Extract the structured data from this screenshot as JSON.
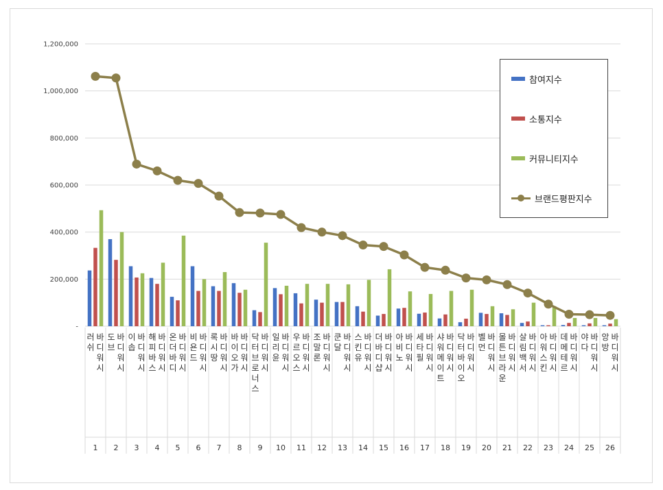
{
  "chart_data": {
    "type": "bar+line",
    "categories": [
      {
        "num": "1",
        "name": "러쉬 바디워시"
      },
      {
        "num": "2",
        "name": "도브 바디워시"
      },
      {
        "num": "3",
        "name": "이솝 바디워시"
      },
      {
        "num": "4",
        "name": "해피바스 바디워시"
      },
      {
        "num": "5",
        "name": "온더바디 바디워시"
      },
      {
        "num": "6",
        "name": "비욘드 바디워시"
      },
      {
        "num": "7",
        "name": "록시땅 바디워시"
      },
      {
        "num": "8",
        "name": "바이오가 바디워시"
      },
      {
        "num": "9",
        "name": "닥터브로너스 바디워시"
      },
      {
        "num": "10",
        "name": "일리윤 바디워시"
      },
      {
        "num": "11",
        "name": "우르오스 바디워시"
      },
      {
        "num": "12",
        "name": "조말론 바디워시"
      },
      {
        "num": "13",
        "name": "쿤달 바디워시"
      },
      {
        "num": "14",
        "name": "스킨유 바디워시"
      },
      {
        "num": "15",
        "name": "더바디샵 바디워시"
      },
      {
        "num": "16",
        "name": "아비노 바디워시"
      },
      {
        "num": "17",
        "name": "세타필 바디워시"
      },
      {
        "num": "18",
        "name": "샤워메이트 바디워시"
      },
      {
        "num": "19",
        "name": "닥터바이오 바디워시"
      },
      {
        "num": "20",
        "name": "벨먼 바디워시"
      },
      {
        "num": "21",
        "name": "몰튼브라운 바디워시"
      },
      {
        "num": "22",
        "name": "살림백서 바디워시"
      },
      {
        "num": "23",
        "name": "아워스킨 바디워시"
      },
      {
        "num": "24",
        "name": "데메테르 바디워시"
      },
      {
        "num": "25",
        "name": "야다 바디워시"
      },
      {
        "num": "26",
        "name": "앙방 바디워시"
      }
    ],
    "series": [
      {
        "name": "참여지수",
        "kind": "bar",
        "color": "#4472c4",
        "values": [
          237000,
          370000,
          255000,
          205000,
          125000,
          255000,
          170000,
          183000,
          68000,
          162000,
          140000,
          113000,
          103000,
          85000,
          45000,
          75000,
          53000,
          33000,
          17000,
          57000,
          55000,
          14000,
          4000,
          5000,
          4000,
          4000
        ]
      },
      {
        "name": "소통지수",
        "kind": "bar",
        "color": "#c0504d",
        "values": [
          333000,
          282000,
          207000,
          180000,
          110000,
          150000,
          150000,
          142000,
          60000,
          136000,
          97000,
          100000,
          103000,
          62000,
          52000,
          78000,
          58000,
          50000,
          32000,
          52000,
          48000,
          20000,
          4000,
          14000,
          12000,
          11000
        ]
      },
      {
        "name": "커뮤니티지수",
        "kind": "bar",
        "color": "#9bbb59",
        "values": [
          493000,
          400000,
          225000,
          270000,
          385000,
          200000,
          230000,
          155000,
          355000,
          172000,
          180000,
          180000,
          178000,
          197000,
          242000,
          148000,
          137000,
          150000,
          155000,
          85000,
          72000,
          100000,
          85000,
          35000,
          35000,
          30000
        ]
      },
      {
        "name": "브랜드평판지수",
        "kind": "line",
        "color": "#8c7f4a",
        "values": [
          1062000,
          1055000,
          689000,
          660000,
          620000,
          607000,
          553000,
          483000,
          481000,
          475000,
          419000,
          400000,
          385000,
          345000,
          339000,
          303000,
          250000,
          238000,
          205000,
          197000,
          177000,
          141000,
          94000,
          51000,
          49000,
          46000
        ]
      }
    ],
    "ylim": [
      0,
      1200000
    ],
    "yticks": [
      {
        "v": 0,
        "label": "-"
      },
      {
        "v": 200000,
        "label": "200,000"
      },
      {
        "v": 400000,
        "label": "400,000"
      },
      {
        "v": 600000,
        "label": "600,000"
      },
      {
        "v": 800000,
        "label": "800,000"
      },
      {
        "v": 1000000,
        "label": "1,000,000"
      },
      {
        "v": 1200000,
        "label": "1,200,000"
      }
    ],
    "grid": true,
    "legend_position": "right"
  }
}
